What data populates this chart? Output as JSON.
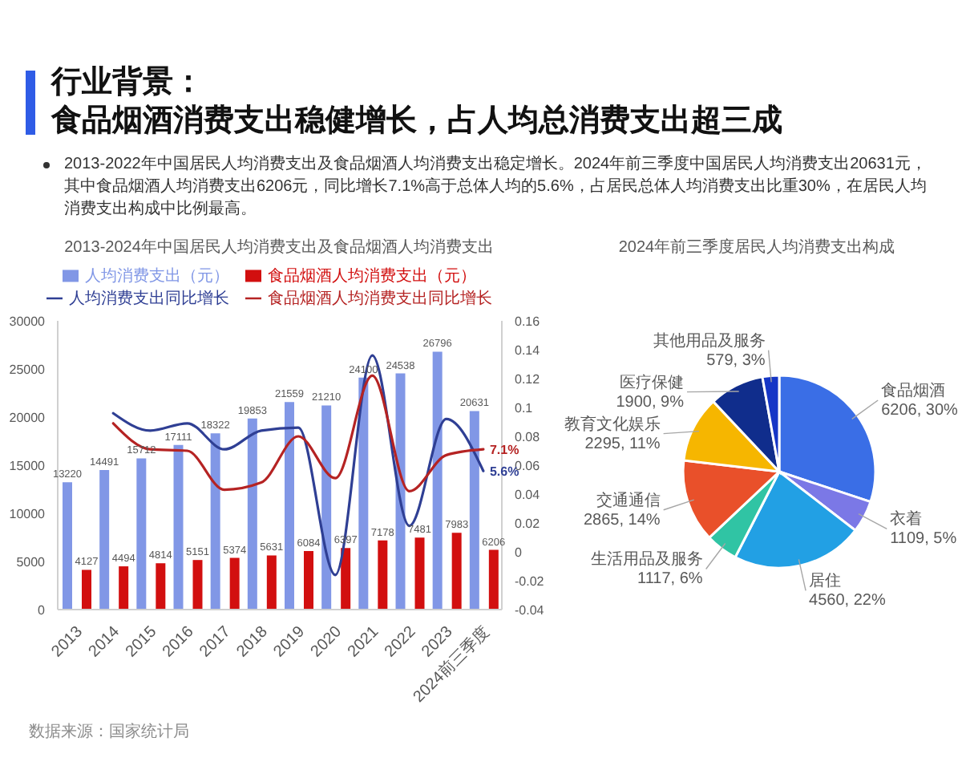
{
  "chart_data": [
    {
      "type": "other",
      "title": "行业背景：",
      "subtitle": "食品烟酒消费支出稳健增长，占人均总消费支出超三成",
      "annotations": [
        "2013-2022年中国居民人均消费支出及食品烟酒人均消费支出稳定增长。2024年前三季度中国居民人均消费支出20631元，其中食品烟酒人均消费支出6206元，同比增长7.1%高于总体人均的5.6%，占居民总体人均消费支出比重30%，在居民人均消费支出构成中比例最高。"
      ]
    },
    {
      "type": "bar",
      "title": "2013-2024年中国居民人均消费支出及食品烟酒人均消费支出",
      "categories": [
        "2013",
        "2014",
        "2015",
        "2016",
        "2017",
        "2018",
        "2019",
        "2020",
        "2021",
        "2022",
        "2023",
        "2024前三季度"
      ],
      "series": [
        {
          "name": "人均消费支出（元）",
          "color": "#8197e6",
          "values": [
            13220,
            14491,
            15712,
            17111,
            18322,
            19853,
            21559,
            21210,
            24100,
            24538,
            26796,
            20631
          ],
          "value_labels": [
            "13220",
            "14491",
            "15712",
            "17111",
            "18322",
            "19853",
            "21559",
            "21210",
            "24100",
            "24538",
            "26796",
            "20631"
          ]
        },
        {
          "name": "食品烟酒人均消费支出（元）",
          "color": "#d20f0f",
          "values": [
            4127,
            4494,
            4814,
            5151,
            5374,
            5631,
            6084,
            6397,
            7178,
            7481,
            7983,
            6206
          ],
          "value_labels": [
            "4127",
            "4494",
            "4814",
            "5151",
            "5374",
            "5631",
            "6084",
            "6397",
            "7178",
            "7481",
            "7983",
            "6206"
          ]
        },
        {
          "name": "人均消费支出同比增长",
          "type": "line",
          "axis": "y2",
          "color": "#2f3f94",
          "values": [
            null,
            0.096,
            0.084,
            0.089,
            0.071,
            0.084,
            0.086,
            -0.016,
            0.136,
            0.018,
            0.092,
            0.056
          ],
          "value_labels": [
            null,
            null,
            null,
            null,
            null,
            null,
            null,
            null,
            null,
            null,
            null,
            "5.6%"
          ]
        },
        {
          "name": "食品烟酒人均消费支出同比增长",
          "type": "line",
          "axis": "y2",
          "color": "#b52323",
          "values": [
            null,
            0.089,
            0.071,
            0.07,
            0.043,
            0.048,
            0.08,
            0.051,
            0.122,
            0.042,
            0.067,
            0.071
          ],
          "value_labels": [
            null,
            null,
            null,
            null,
            null,
            null,
            null,
            null,
            null,
            null,
            null,
            "7.1%"
          ]
        }
      ],
      "ylim": [
        0,
        30000
      ],
      "yticks": [
        0,
        5000,
        10000,
        15000,
        20000,
        25000,
        30000
      ],
      "y2lim": [
        -0.04,
        0.16
      ],
      "y2ticks": [
        -0.04,
        -0.02,
        0,
        0.02,
        0.04,
        0.06,
        0.08,
        0.1,
        0.12,
        0.14,
        0.16
      ],
      "legend": "top",
      "annotations": [
        "数据来源：国家统计局"
      ]
    },
    {
      "type": "pie",
      "title": "2024年前三季度居民人均消费支出构成",
      "categories": [
        "食品烟酒",
        "衣着",
        "居住",
        "生活用品及服务",
        "交通通信",
        "教育文化娱乐",
        "医疗保健",
        "其他用品及服务"
      ],
      "values": [
        6206,
        1109,
        4560,
        1117,
        2865,
        2295,
        1900,
        579
      ],
      "colors": [
        "#3a6ee6",
        "#7b78e6",
        "#22a0e4",
        "#30c4a4",
        "#e9502a",
        "#f6b600",
        "#102d8c",
        "#1636c6"
      ],
      "value_labels": [
        "6206, 30%",
        "1109, 5%",
        "4560, 22%",
        "1117, 6%",
        "2865, 14%",
        "2295, 11%",
        "1900, 9%",
        "579, 3%"
      ]
    }
  ]
}
